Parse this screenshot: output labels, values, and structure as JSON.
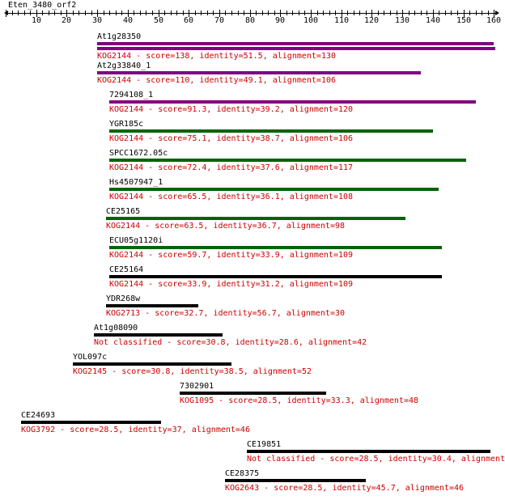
{
  "query": {
    "name": "Eten_3480_orf2"
  },
  "axis": {
    "min": 0,
    "max": 160,
    "tick_labels": [
      "10",
      "20",
      "30",
      "40",
      "50",
      "60",
      "70",
      "80",
      "90",
      "100",
      "110",
      "120",
      "130",
      "140",
      "150",
      "160"
    ]
  },
  "colors": {
    "purple": "#800080",
    "green": "#006400",
    "black": "#000000",
    "info_text": "#cc0000"
  },
  "hits": [
    {
      "name": "At1g28350",
      "info": "KOG2144 - score=138, identity=51.5, alignment=130",
      "start": 30,
      "end": 160,
      "color": "purple",
      "double": true
    },
    {
      "name": "At2g33840_1",
      "info": "KOG2144 - score=110, identity=49.1, alignment=106",
      "start": 30,
      "end": 136,
      "color": "purple"
    },
    {
      "name": "7294108_1",
      "info": "KOG2144 - score=91.3, identity=39.2, alignment=120",
      "start": 34,
      "end": 154,
      "color": "purple"
    },
    {
      "name": "YGR185c",
      "info": "KOG2144 - score=75.1, identity=38.7, alignment=106",
      "start": 34,
      "end": 140,
      "color": "green"
    },
    {
      "name": "SPCC1672.05c",
      "info": "KOG2144 - score=72.4, identity=37.6, alignment=117",
      "start": 34,
      "end": 151,
      "color": "green"
    },
    {
      "name": "Hs4507947_1",
      "info": "KOG2144 - score=65.5, identity=36.1, alignment=108",
      "start": 34,
      "end": 142,
      "color": "green"
    },
    {
      "name": "CE25165",
      "info": "KOG2144 - score=63.5, identity=36.7, alignment=98",
      "start": 33,
      "end": 131,
      "color": "green"
    },
    {
      "name": "ECU05g1120i",
      "info": "KOG2144 - score=59.7, identity=33.9, alignment=109",
      "start": 34,
      "end": 143,
      "color": "green"
    },
    {
      "name": "CE25164",
      "info": "KOG2144 - score=33.9, identity=31.2, alignment=109",
      "start": 34,
      "end": 143,
      "color": "black"
    },
    {
      "name": "YDR268w",
      "info": "KOG2713 - score=32.7, identity=56.7, alignment=30",
      "start": 33,
      "end": 63,
      "color": "black"
    },
    {
      "name": "At1g08090",
      "info": "Not classified - score=30.8, identity=28.6, alignment=42",
      "start": 29,
      "end": 71,
      "color": "black"
    },
    {
      "name": "YOL097c",
      "info": "KOG2145 - score=30.8, identity=38.5, alignment=52",
      "start": 22,
      "end": 74,
      "color": "black"
    },
    {
      "name": "7302901",
      "info": "KOG1095 - score=28.5, identity=33.3, alignment=48",
      "start": 57,
      "end": 105,
      "color": "black"
    },
    {
      "name": "CE24693",
      "info": "KOG3792 - score=28.5, identity=37, alignment=46",
      "start": 5,
      "end": 51,
      "color": "black"
    },
    {
      "name": "CE19851",
      "info": "Not classified - score=28.5, identity=30.4, alignment",
      "start": 79,
      "end": 159,
      "color": "black"
    },
    {
      "name": "CE28375",
      "info": "KOG2643 - score=28.5, identity=45.7, alignment=46",
      "start": 72,
      "end": 118,
      "color": "black"
    }
  ]
}
